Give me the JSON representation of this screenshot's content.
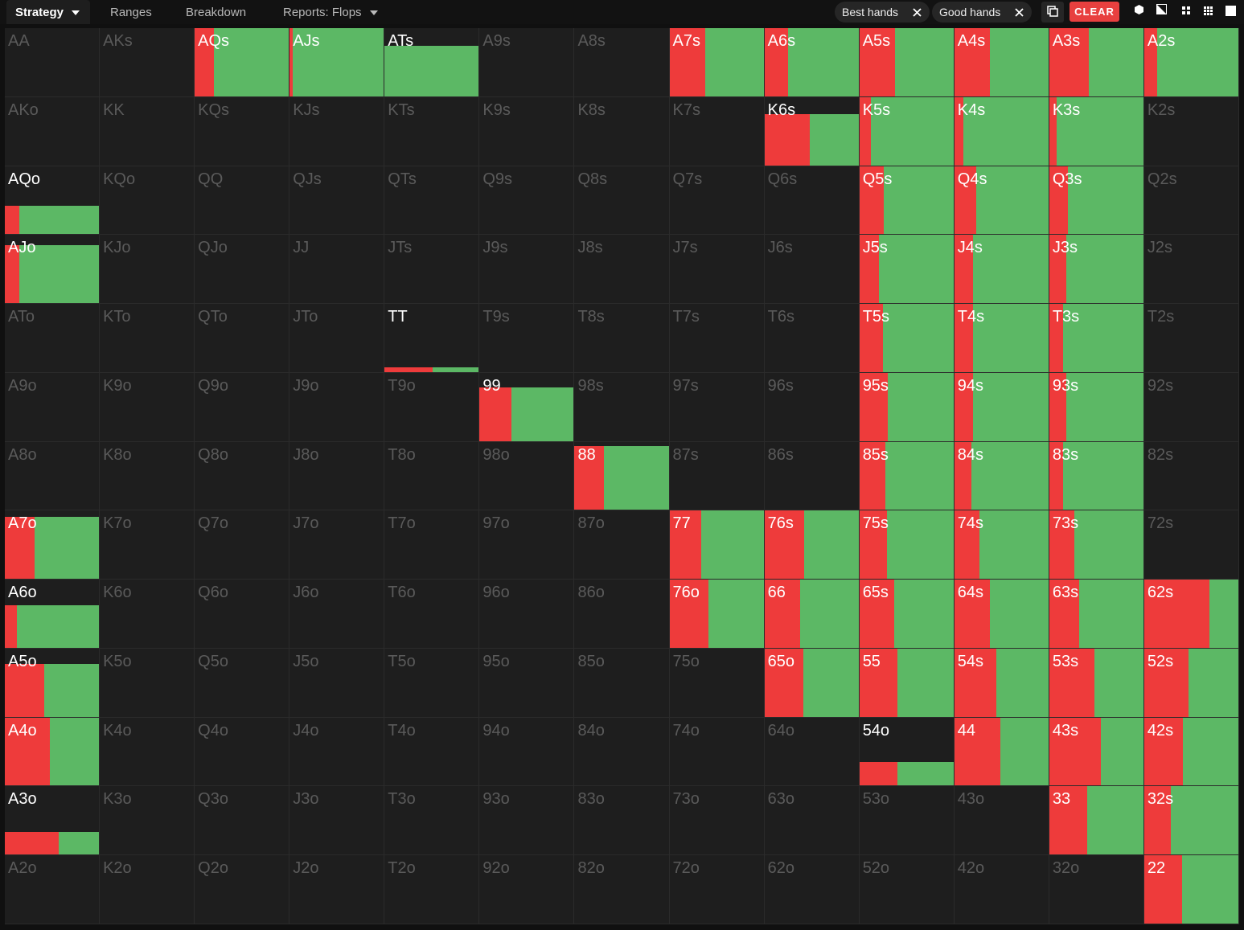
{
  "toolbar": {
    "tabs": [
      "Strategy",
      "Ranges",
      "Breakdown",
      "Reports: Flops"
    ],
    "filters": [
      "Best hands",
      "Good hands"
    ],
    "clear": "CLEAR"
  },
  "grid": {
    "rows": [
      [
        {
          "hand": "AA"
        },
        {
          "hand": "AKs"
        },
        {
          "hand": "AQs",
          "frequency": 100,
          "red_share": 20
        },
        {
          "hand": "AJs",
          "frequency": 100,
          "red_share": 3
        },
        {
          "hand": "ATs",
          "frequency": 74,
          "red_share": 0
        },
        {
          "hand": "A9s"
        },
        {
          "hand": "A8s"
        },
        {
          "hand": "A7s",
          "frequency": 100,
          "red_share": 38
        },
        {
          "hand": "A6s",
          "frequency": 100,
          "red_share": 25
        },
        {
          "hand": "A5s",
          "frequency": 100,
          "red_share": 38
        },
        {
          "hand": "A4s",
          "frequency": 100,
          "red_share": 38
        },
        {
          "hand": "A3s",
          "frequency": 100,
          "red_share": 42
        },
        {
          "hand": "A2s",
          "frequency": 100,
          "red_share": 14
        }
      ],
      [
        {
          "hand": "AKo"
        },
        {
          "hand": "KK"
        },
        {
          "hand": "KQs"
        },
        {
          "hand": "KJs"
        },
        {
          "hand": "KTs"
        },
        {
          "hand": "K9s"
        },
        {
          "hand": "K8s"
        },
        {
          "hand": "K7s"
        },
        {
          "hand": "K6s",
          "frequency": 75,
          "red_share": 48
        },
        {
          "hand": "K5s",
          "frequency": 100,
          "red_share": 12
        },
        {
          "hand": "K4s",
          "frequency": 100,
          "red_share": 10
        },
        {
          "hand": "K3s",
          "frequency": 100,
          "red_share": 8
        },
        {
          "hand": "K2s"
        }
      ],
      [
        {
          "hand": "AQo",
          "frequency": 42,
          "red_share": 15
        },
        {
          "hand": "KQo"
        },
        {
          "hand": "QQ"
        },
        {
          "hand": "QJs"
        },
        {
          "hand": "QTs"
        },
        {
          "hand": "Q9s"
        },
        {
          "hand": "Q8s"
        },
        {
          "hand": "Q7s"
        },
        {
          "hand": "Q6s"
        },
        {
          "hand": "Q5s",
          "frequency": 100,
          "red_share": 26
        },
        {
          "hand": "Q4s",
          "frequency": 100,
          "red_share": 23
        },
        {
          "hand": "Q3s",
          "frequency": 100,
          "red_share": 20
        },
        {
          "hand": "Q2s"
        }
      ],
      [
        {
          "hand": "AJo",
          "frequency": 85,
          "red_share": 15
        },
        {
          "hand": "KJo"
        },
        {
          "hand": "QJo"
        },
        {
          "hand": "JJ"
        },
        {
          "hand": "JTs"
        },
        {
          "hand": "J9s"
        },
        {
          "hand": "J8s"
        },
        {
          "hand": "J7s"
        },
        {
          "hand": "J6s"
        },
        {
          "hand": "J5s",
          "frequency": 100,
          "red_share": 21
        },
        {
          "hand": "J4s",
          "frequency": 100,
          "red_share": 20
        },
        {
          "hand": "J3s",
          "frequency": 100,
          "red_share": 18
        },
        {
          "hand": "J2s"
        }
      ],
      [
        {
          "hand": "ATo"
        },
        {
          "hand": "KTo"
        },
        {
          "hand": "QTo"
        },
        {
          "hand": "JTo"
        },
        {
          "hand": "TT",
          "frequency": 7,
          "red_share": 51
        },
        {
          "hand": "T9s"
        },
        {
          "hand": "T8s"
        },
        {
          "hand": "T7s"
        },
        {
          "hand": "T6s"
        },
        {
          "hand": "T5s",
          "frequency": 100,
          "red_share": 25
        },
        {
          "hand": "T4s",
          "frequency": 100,
          "red_share": 20
        },
        {
          "hand": "T3s",
          "frequency": 100,
          "red_share": 15
        },
        {
          "hand": "T2s"
        }
      ],
      [
        {
          "hand": "A9o"
        },
        {
          "hand": "K9o"
        },
        {
          "hand": "Q9o"
        },
        {
          "hand": "J9o"
        },
        {
          "hand": "T9o"
        },
        {
          "hand": "99",
          "frequency": 79,
          "red_share": 34
        },
        {
          "hand": "98s"
        },
        {
          "hand": "97s"
        },
        {
          "hand": "96s"
        },
        {
          "hand": "95s",
          "frequency": 100,
          "red_share": 30
        },
        {
          "hand": "94s",
          "frequency": 100,
          "red_share": 20
        },
        {
          "hand": "93s",
          "frequency": 100,
          "red_share": 18
        },
        {
          "hand": "92s"
        }
      ],
      [
        {
          "hand": "A8o"
        },
        {
          "hand": "K8o"
        },
        {
          "hand": "Q8o"
        },
        {
          "hand": "J8o"
        },
        {
          "hand": "T8o"
        },
        {
          "hand": "98o"
        },
        {
          "hand": "88",
          "frequency": 94,
          "red_share": 31
        },
        {
          "hand": "87s"
        },
        {
          "hand": "86s"
        },
        {
          "hand": "85s",
          "frequency": 100,
          "red_share": 28
        },
        {
          "hand": "84s",
          "frequency": 100,
          "red_share": 18
        },
        {
          "hand": "83s",
          "frequency": 100,
          "red_share": 15
        },
        {
          "hand": "82s"
        }
      ],
      [
        {
          "hand": "A7o",
          "frequency": 91,
          "red_share": 32
        },
        {
          "hand": "K7o"
        },
        {
          "hand": "Q7o"
        },
        {
          "hand": "J7o"
        },
        {
          "hand": "T7o"
        },
        {
          "hand": "97o"
        },
        {
          "hand": "87o"
        },
        {
          "hand": "77",
          "frequency": 100,
          "red_share": 34
        },
        {
          "hand": "76s",
          "frequency": 100,
          "red_share": 42
        },
        {
          "hand": "75s",
          "frequency": 100,
          "red_share": 29
        },
        {
          "hand": "74s",
          "frequency": 100,
          "red_share": 27
        },
        {
          "hand": "73s",
          "frequency": 100,
          "red_share": 27
        },
        {
          "hand": "72s"
        }
      ],
      [
        {
          "hand": "A6o",
          "frequency": 63,
          "red_share": 13
        },
        {
          "hand": "K6o"
        },
        {
          "hand": "Q6o"
        },
        {
          "hand": "J6o"
        },
        {
          "hand": "T6o"
        },
        {
          "hand": "96o"
        },
        {
          "hand": "86o"
        },
        {
          "hand": "76o",
          "frequency": 100,
          "red_share": 41
        },
        {
          "hand": "66",
          "frequency": 100,
          "red_share": 38
        },
        {
          "hand": "65s",
          "frequency": 100,
          "red_share": 37
        },
        {
          "hand": "64s",
          "frequency": 100,
          "red_share": 38
        },
        {
          "hand": "63s",
          "frequency": 100,
          "red_share": 32
        },
        {
          "hand": "62s",
          "frequency": 100,
          "red_share": 69
        }
      ],
      [
        {
          "hand": "A5o",
          "frequency": 77,
          "red_share": 42
        },
        {
          "hand": "K5o"
        },
        {
          "hand": "Q5o"
        },
        {
          "hand": "J5o"
        },
        {
          "hand": "T5o"
        },
        {
          "hand": "95o"
        },
        {
          "hand": "85o"
        },
        {
          "hand": "75o"
        },
        {
          "hand": "65o",
          "frequency": 100,
          "red_share": 41
        },
        {
          "hand": "55",
          "frequency": 100,
          "red_share": 40
        },
        {
          "hand": "54s",
          "frequency": 100,
          "red_share": 45
        },
        {
          "hand": "53s",
          "frequency": 100,
          "red_share": 48
        },
        {
          "hand": "52s",
          "frequency": 100,
          "red_share": 47
        }
      ],
      [
        {
          "hand": "A4o",
          "frequency": 100,
          "red_share": 48
        },
        {
          "hand": "K4o"
        },
        {
          "hand": "Q4o"
        },
        {
          "hand": "J4o"
        },
        {
          "hand": "T4o"
        },
        {
          "hand": "94o"
        },
        {
          "hand": "84o"
        },
        {
          "hand": "74o"
        },
        {
          "hand": "64o"
        },
        {
          "hand": "54o",
          "frequency": 35,
          "red_share": 40
        },
        {
          "hand": "44",
          "frequency": 100,
          "red_share": 49
        },
        {
          "hand": "43s",
          "frequency": 100,
          "red_share": 55
        },
        {
          "hand": "42s",
          "frequency": 100,
          "red_share": 41
        }
      ],
      [
        {
          "hand": "A3o",
          "frequency": 33,
          "red_share": 57
        },
        {
          "hand": "K3o"
        },
        {
          "hand": "Q3o"
        },
        {
          "hand": "J3o"
        },
        {
          "hand": "T3o"
        },
        {
          "hand": "93o"
        },
        {
          "hand": "83o"
        },
        {
          "hand": "73o"
        },
        {
          "hand": "63o"
        },
        {
          "hand": "53o"
        },
        {
          "hand": "43o"
        },
        {
          "hand": "33",
          "frequency": 100,
          "red_share": 40
        },
        {
          "hand": "32s",
          "frequency": 100,
          "red_share": 28
        }
      ],
      [
        {
          "hand": "A2o"
        },
        {
          "hand": "K2o"
        },
        {
          "hand": "Q2o"
        },
        {
          "hand": "J2o"
        },
        {
          "hand": "T2o"
        },
        {
          "hand": "92o"
        },
        {
          "hand": "82o"
        },
        {
          "hand": "72o"
        },
        {
          "hand": "62o"
        },
        {
          "hand": "52o"
        },
        {
          "hand": "42o"
        },
        {
          "hand": "32o"
        },
        {
          "hand": "22",
          "frequency": 100,
          "red_share": 40
        }
      ]
    ]
  }
}
